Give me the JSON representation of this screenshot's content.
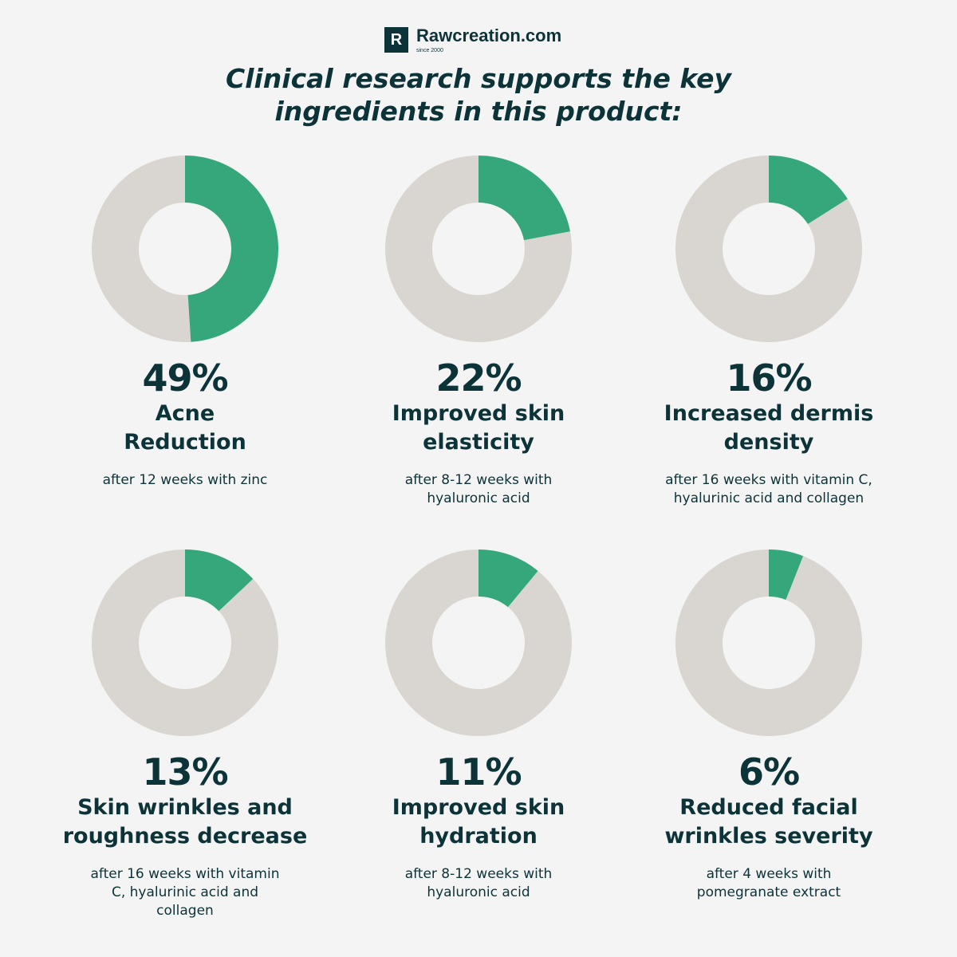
{
  "brand": {
    "mark": "R",
    "name": "Rawcreation.com",
    "since": "since 2000"
  },
  "headline": {
    "part1": "Clinical research supports the ",
    "bold1": "key",
    "bold2": "ingredients",
    "part2": " in this product:"
  },
  "colors": {
    "accent": "#35a77b",
    "track": "#d9d5d0",
    "text": "#0c3338",
    "background": "#f4f4f4"
  },
  "chart_data": [
    {
      "type": "pie",
      "value": 49,
      "percent_label": "49%",
      "label_lines": [
        "Acne",
        "Reduction"
      ],
      "note_lines": [
        "after 12 weeks with zinc"
      ]
    },
    {
      "type": "pie",
      "value": 22,
      "percent_label": "22%",
      "label_lines": [
        "Improved skin",
        "elasticity"
      ],
      "note_lines": [
        "after 8-12 weeks with",
        "hyaluronic acid"
      ]
    },
    {
      "type": "pie",
      "value": 16,
      "percent_label": "16%",
      "label_lines": [
        "Increased dermis",
        "density"
      ],
      "note_lines": [
        "after 16 weeks with vitamin C,",
        "hyalurinic acid and collagen"
      ]
    },
    {
      "type": "pie",
      "value": 13,
      "percent_label": "13%",
      "label_lines": [
        "Skin wrinkles and",
        "roughness decrease"
      ],
      "note_lines": [
        "after 16 weeks with vitamin",
        "C, hyalurinic acid and",
        "collagen"
      ]
    },
    {
      "type": "pie",
      "value": 11,
      "percent_label": "11%",
      "label_lines": [
        "Improved skin",
        "hydration"
      ],
      "note_lines": [
        "after 8-12 weeks with",
        "hyaluronic acid"
      ]
    },
    {
      "type": "pie",
      "value": 6,
      "percent_label": "6%",
      "label_lines": [
        "Reduced facial",
        "wrinkles severity"
      ],
      "note_lines": [
        "after 4 weeks with",
        "pomegranate extract"
      ]
    }
  ]
}
